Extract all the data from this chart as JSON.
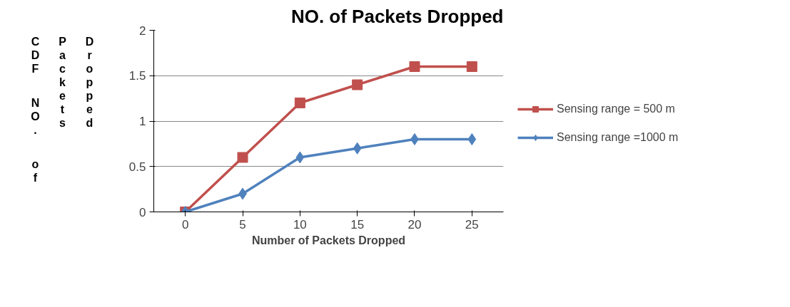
{
  "chart_data": {
    "type": "line",
    "title": "NO. of Packets Dropped",
    "xlabel": "Number of Packets Dropped",
    "ylabel": "CDF NO. of Packets Dropped",
    "categories": [
      "0",
      "5",
      "10",
      "15",
      "20",
      "25"
    ],
    "series": [
      {
        "name": "Sensing range = 500 m",
        "color": "#c0504d",
        "marker": "square",
        "values": [
          0,
          0.6,
          1.2,
          1.4,
          1.6,
          1.6
        ]
      },
      {
        "name": "Sensing range =1000 m",
        "color": "#4f81bd",
        "marker": "diamond",
        "values": [
          0,
          0.2,
          0.6,
          0.7,
          0.8,
          0.8
        ]
      }
    ],
    "ylim": [
      0,
      2
    ],
    "yticks": [
      0,
      0.5,
      1,
      1.5,
      2
    ],
    "grid": "y",
    "legend": "right",
    "line_style": "solid"
  }
}
